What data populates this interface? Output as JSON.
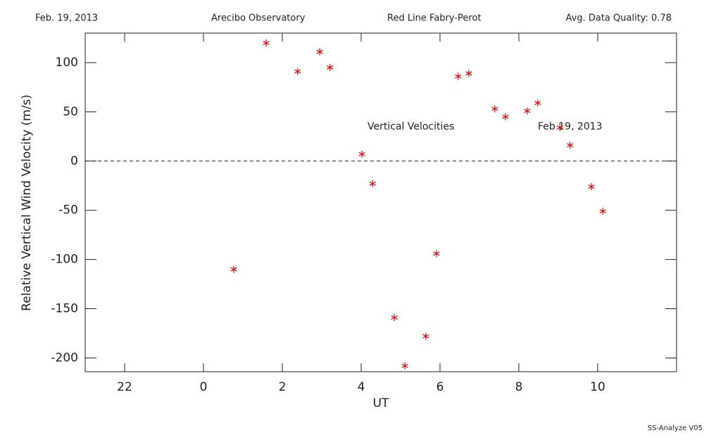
{
  "chart_data": {
    "type": "scatter",
    "header": [
      "Feb. 19, 2013",
      "Arecibo Observatory",
      "Red Line Fabry-Perot",
      "Avg. Data Quality: 0.78"
    ],
    "annotations": [
      "Vertical Velocities",
      "Feb 19, 2013"
    ],
    "footer": "SS-Analyze V05",
    "xlabel": "UT",
    "ylabel": "Relative Vertical Wind Velocity (m/s)",
    "x": [
      0.77,
      1.59,
      2.39,
      2.95,
      3.21,
      4.02,
      4.29,
      4.84,
      5.11,
      5.64,
      5.91,
      6.46,
      6.73,
      7.39,
      7.66,
      8.21,
      8.48,
      9.04,
      9.3,
      9.84,
      10.13
    ],
    "values": [
      -110,
      120,
      91,
      111,
      95,
      7,
      -23,
      -159,
      -208,
      -178,
      -94,
      86,
      89,
      53,
      45,
      51,
      59,
      34,
      16,
      -26,
      -51
    ],
    "color": "#e00000",
    "xlim": [
      -3,
      12
    ],
    "xticks": [
      {
        "value": -2,
        "label": "22"
      },
      0,
      2,
      4,
      6,
      8,
      10
    ],
    "ylim": [
      -214,
      130
    ],
    "yticks": [
      -200,
      -150,
      -100,
      -50,
      0,
      50,
      100
    ],
    "zero_line": true
  }
}
